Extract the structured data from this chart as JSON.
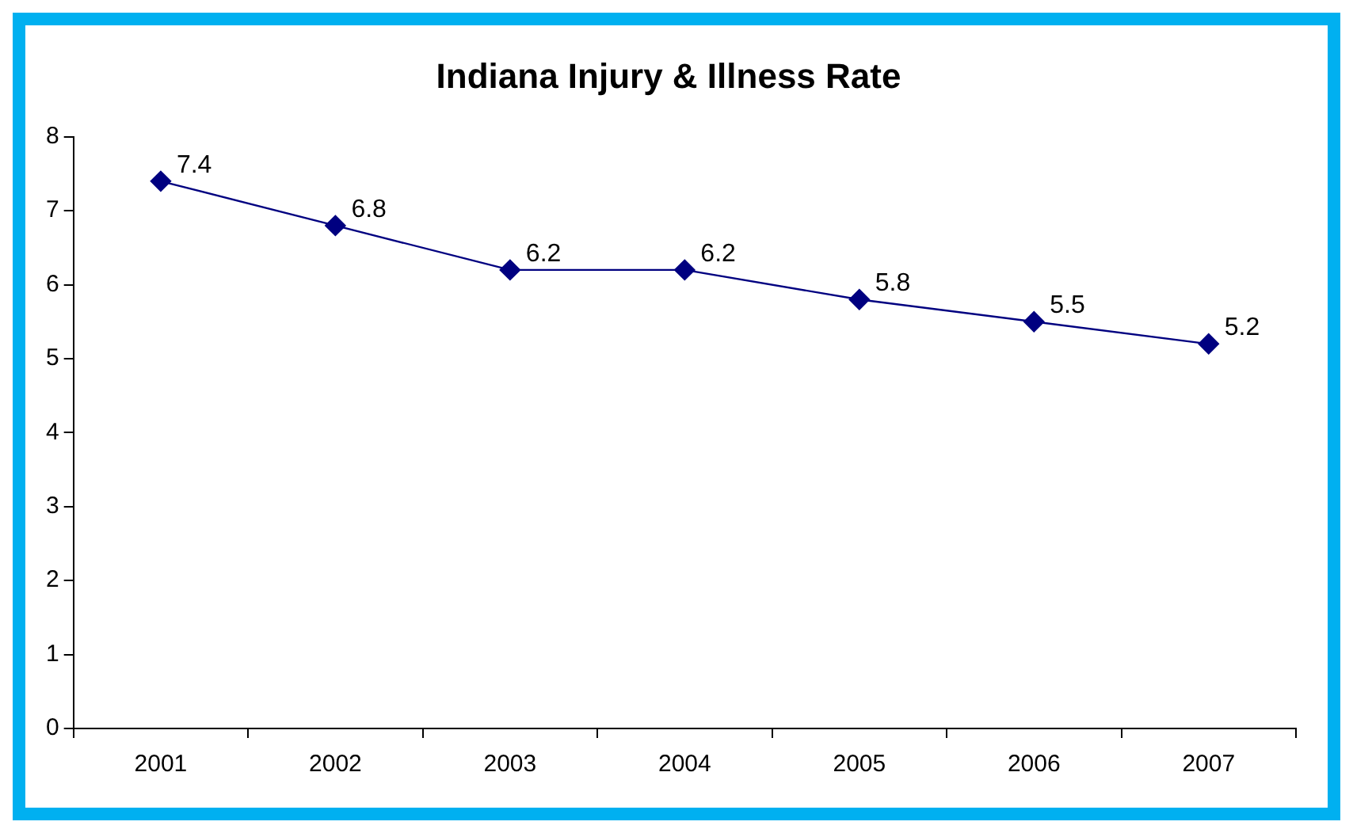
{
  "chart_data": {
    "type": "line",
    "title": "Indiana Injury & Illness Rate",
    "categories": [
      "2001",
      "2002",
      "2003",
      "2004",
      "2005",
      "2006",
      "2007"
    ],
    "series": [
      {
        "color": "#000080",
        "values": [
          7.4,
          6.8,
          6.2,
          6.2,
          5.8,
          5.5,
          5.2
        ]
      }
    ],
    "ylim": [
      0,
      8
    ],
    "yticks": [
      0,
      1,
      2,
      3,
      4,
      5,
      6,
      7,
      8
    ],
    "marker": "diamond",
    "line_style": "solid",
    "data_labels": true,
    "legend": false
  }
}
